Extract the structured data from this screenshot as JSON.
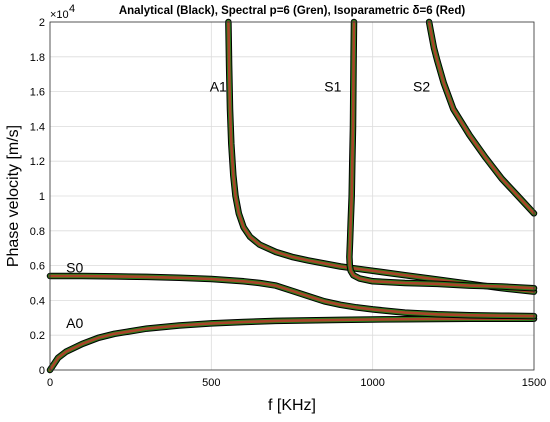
{
  "chart_data": {
    "type": "line",
    "title": "Analytical (Black), Spectral p=6 (Gren), Isoparametric δ=6 (Red)",
    "xlabel": "f [KHz]",
    "ylabel": "Phase velocity [m/s]",
    "xlim": [
      0,
      1500
    ],
    "ylim": [
      0,
      20000
    ],
    "x_ticks": [
      0,
      500,
      1000,
      1500
    ],
    "y_ticks": [
      0,
      2000,
      4000,
      6000,
      8000,
      10000,
      12000,
      14000,
      16000,
      18000,
      20000
    ],
    "y_tick_labels": [
      "0",
      "0.2",
      "0.4",
      "0.6",
      "0.8",
      "1",
      "1.2",
      "1.4",
      "1.6",
      "1.8",
      "2"
    ],
    "y_exponent_base": "×10",
    "y_exponent_power": "4",
    "grid": true,
    "colors": {
      "analytical": "#000000",
      "spectral": "#2e8b1e",
      "isoparametric": "#c0392b"
    },
    "mode_labels": [
      {
        "text": "A0",
        "x": 50,
        "y": 2400
      },
      {
        "text": "S0",
        "x": 50,
        "y": 5600
      },
      {
        "text": "A1",
        "x": 495,
        "y": 16000
      },
      {
        "text": "S1",
        "x": 850,
        "y": 16000
      },
      {
        "text": "S2",
        "x": 1125,
        "y": 16000
      }
    ],
    "series": [
      {
        "name": "A0",
        "x": [
          0,
          25,
          50,
          100,
          150,
          200,
          300,
          400,
          500,
          600,
          700,
          800,
          900,
          1000,
          1100,
          1200,
          1300,
          1400,
          1500
        ],
        "y": [
          0,
          700,
          1050,
          1500,
          1850,
          2080,
          2380,
          2560,
          2680,
          2760,
          2820,
          2850,
          2880,
          2900,
          2920,
          2930,
          2940,
          2945,
          2950
        ]
      },
      {
        "name": "S0",
        "x": [
          0,
          100,
          200,
          300,
          400,
          500,
          600,
          650,
          700,
          750,
          800,
          850,
          900,
          950,
          1000,
          1100,
          1200,
          1300,
          1400,
          1500
        ],
        "y": [
          5400,
          5400,
          5380,
          5350,
          5300,
          5230,
          5100,
          5000,
          4850,
          4550,
          4250,
          3950,
          3750,
          3600,
          3480,
          3300,
          3200,
          3150,
          3120,
          3100
        ]
      },
      {
        "name": "A1",
        "x": [
          553,
          555,
          558,
          562,
          568,
          575,
          585,
          600,
          620,
          650,
          700,
          750,
          800,
          900,
          1000,
          1100,
          1200,
          1300,
          1400,
          1500
        ],
        "y": [
          20000,
          17500,
          15000,
          13000,
          11200,
          10000,
          9000,
          8200,
          7650,
          7200,
          6780,
          6500,
          6300,
          5950,
          5700,
          5450,
          5200,
          4950,
          4700,
          4500
        ]
      },
      {
        "name": "S1",
        "x": [
          942,
          941,
          940,
          939,
          937,
          935,
          932,
          930,
          928,
          929,
          932,
          940,
          960,
          1000,
          1100,
          1200,
          1300,
          1400,
          1500
        ],
        "y": [
          20000,
          18000,
          16000,
          14000,
          12000,
          10000,
          8500,
          7500,
          6500,
          6000,
          5700,
          5450,
          5250,
          5100,
          5000,
          4950,
          4850,
          4800,
          4700
        ]
      },
      {
        "name": "S2",
        "x": [
          1175,
          1180,
          1190,
          1200,
          1220,
          1250,
          1300,
          1350,
          1400,
          1450,
          1500
        ],
        "y": [
          20000,
          19500,
          18500,
          17800,
          16500,
          15000,
          13500,
          12200,
          11000,
          10000,
          9000
        ]
      }
    ]
  }
}
